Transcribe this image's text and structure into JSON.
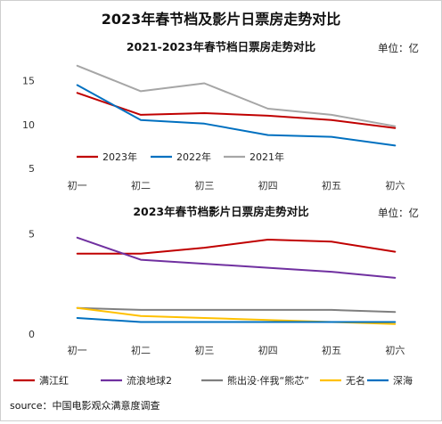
{
  "title": "2023年春节档及影片日票房走势对比",
  "source": "source：中国电影观众满意度调查",
  "chart_data": [
    {
      "type": "line",
      "title": "2021-2023年春节档日票房走势对比",
      "unit_label": "单位：亿",
      "categories": [
        "初一",
        "初二",
        "初三",
        "初四",
        "初五",
        "初六"
      ],
      "yticks": [
        5,
        10,
        15
      ],
      "ylim": [
        5,
        18
      ],
      "grid": false,
      "legend_position": "inside-bottom-left",
      "series": [
        {
          "name": "2023年",
          "color": "#c00000",
          "values": [
            13.6,
            11.1,
            11.3,
            11.0,
            10.5,
            9.6
          ]
        },
        {
          "name": "2022年",
          "color": "#0070c0",
          "values": [
            14.5,
            10.5,
            10.1,
            8.8,
            8.6,
            7.6
          ]
        },
        {
          "name": "2021年",
          "color": "#a6a6a6",
          "values": [
            16.7,
            13.8,
            14.7,
            11.8,
            11.1,
            9.8
          ]
        }
      ]
    },
    {
      "type": "line",
      "title": "2023年春节档影片日票房走势对比",
      "unit_label": "单位：亿",
      "categories": [
        "初一",
        "初二",
        "初三",
        "初四",
        "初五",
        "初六"
      ],
      "yticks": [
        0,
        5
      ],
      "ylim": [
        0,
        5.5
      ],
      "grid": false,
      "legend_position": "bottom",
      "series": [
        {
          "name": "满江红",
          "color": "#c00000",
          "values": [
            4.0,
            4.0,
            4.3,
            4.7,
            4.6,
            4.1
          ]
        },
        {
          "name": "流浪地球2",
          "color": "#7030a0",
          "values": [
            4.8,
            3.7,
            3.5,
            3.3,
            3.1,
            2.8
          ]
        },
        {
          "name": "熊出没·伴我“熊芯”",
          "color": "#7f7f7f",
          "values": [
            1.3,
            1.2,
            1.2,
            1.2,
            1.2,
            1.1
          ]
        },
        {
          "name": "无名",
          "color": "#ffc000",
          "values": [
            1.3,
            0.9,
            0.8,
            0.7,
            0.6,
            0.5
          ]
        },
        {
          "name": "深海",
          "color": "#0070c0",
          "values": [
            0.8,
            0.6,
            0.6,
            0.6,
            0.6,
            0.6
          ]
        }
      ]
    }
  ]
}
